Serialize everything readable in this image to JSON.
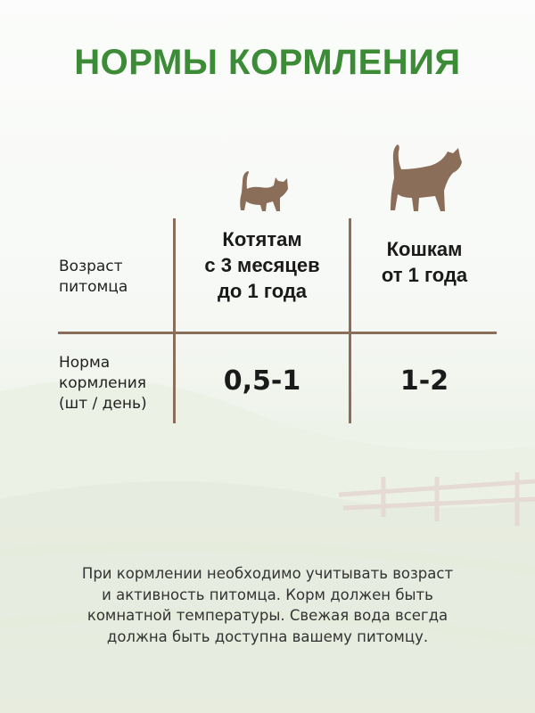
{
  "title": "НОРМЫ КОРМЛЕНИЯ",
  "colors": {
    "title": "#3b8b37",
    "lines": "#8b6e5a",
    "cat_icons": "#8b6e5a"
  },
  "table": {
    "row_labels": {
      "age": [
        "Возраст",
        "питомца"
      ],
      "norm": [
        "Норма",
        "кормления",
        "(шт / день)"
      ]
    },
    "columns": [
      {
        "icon": "kitten-icon",
        "header": [
          "Котятам",
          "с 3 месяцев",
          "до 1 года"
        ],
        "value": "0,5-1"
      },
      {
        "icon": "cat-icon",
        "header": [
          "Кошкам",
          "от 1 года"
        ],
        "value": "1-2"
      }
    ]
  },
  "note": [
    "При кормлении необходимо учитывать возраст",
    "и активность питомца. Корм должен быть",
    "комнатной температуры. Свежая вода всегда",
    "должна быть доступна вашему питомцу."
  ]
}
